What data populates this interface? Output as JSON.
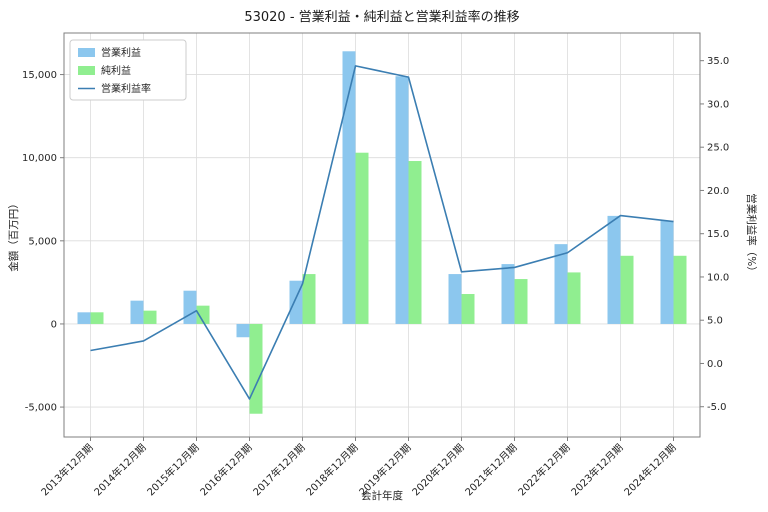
{
  "title": "53020 - 営業利益・純利益と営業利益率の推移",
  "chart_data": {
    "type": "bar+line",
    "categories": [
      "2013年12月期",
      "2014年12月期",
      "2015年12月期",
      "2016年12月期",
      "2017年12月期",
      "2018年12月期",
      "2019年12月期",
      "2020年12月期",
      "2021年12月期",
      "2022年12月期",
      "2023年12月期",
      "2024年12月期"
    ],
    "bar_series": [
      {
        "name": "営業利益",
        "color": "#8CC7EE",
        "values": [
          700,
          1400,
          2000,
          -800,
          2600,
          16400,
          14900,
          3000,
          3600,
          4800,
          6500,
          6200
        ]
      },
      {
        "name": "純利益",
        "color": "#90EE90",
        "values": [
          700,
          800,
          1100,
          -5400,
          3000,
          10300,
          9800,
          1800,
          2700,
          3100,
          4100,
          4100
        ]
      }
    ],
    "line_series": [
      {
        "name": "営業利益率",
        "color": "#3B7EB2",
        "values": [
          1.5,
          2.6,
          6.1,
          -4.1,
          9.2,
          34.4,
          33.1,
          10.6,
          11.1,
          12.8,
          17.1,
          16.4
        ]
      }
    ],
    "xlabel": "会計年度",
    "ylabel_left": "金額（百万円）",
    "ylabel_right": "営業利益率（%）",
    "ylim_left": [
      -6800,
      17500
    ],
    "ylim_right": [
      -8.5,
      38.2
    ],
    "yticks_left": [
      -5000,
      0,
      5000,
      10000,
      15000
    ],
    "yticks_right": [
      -5.0,
      0.0,
      5.0,
      10.0,
      15.0,
      20.0,
      25.0,
      30.0,
      35.0
    ],
    "grid": true,
    "legend_position": "upper-left",
    "colors": {
      "grid": "#DCDCDC",
      "spine": "#7F7F7F",
      "background": "#FFFFFF",
      "text": "#262626"
    }
  }
}
